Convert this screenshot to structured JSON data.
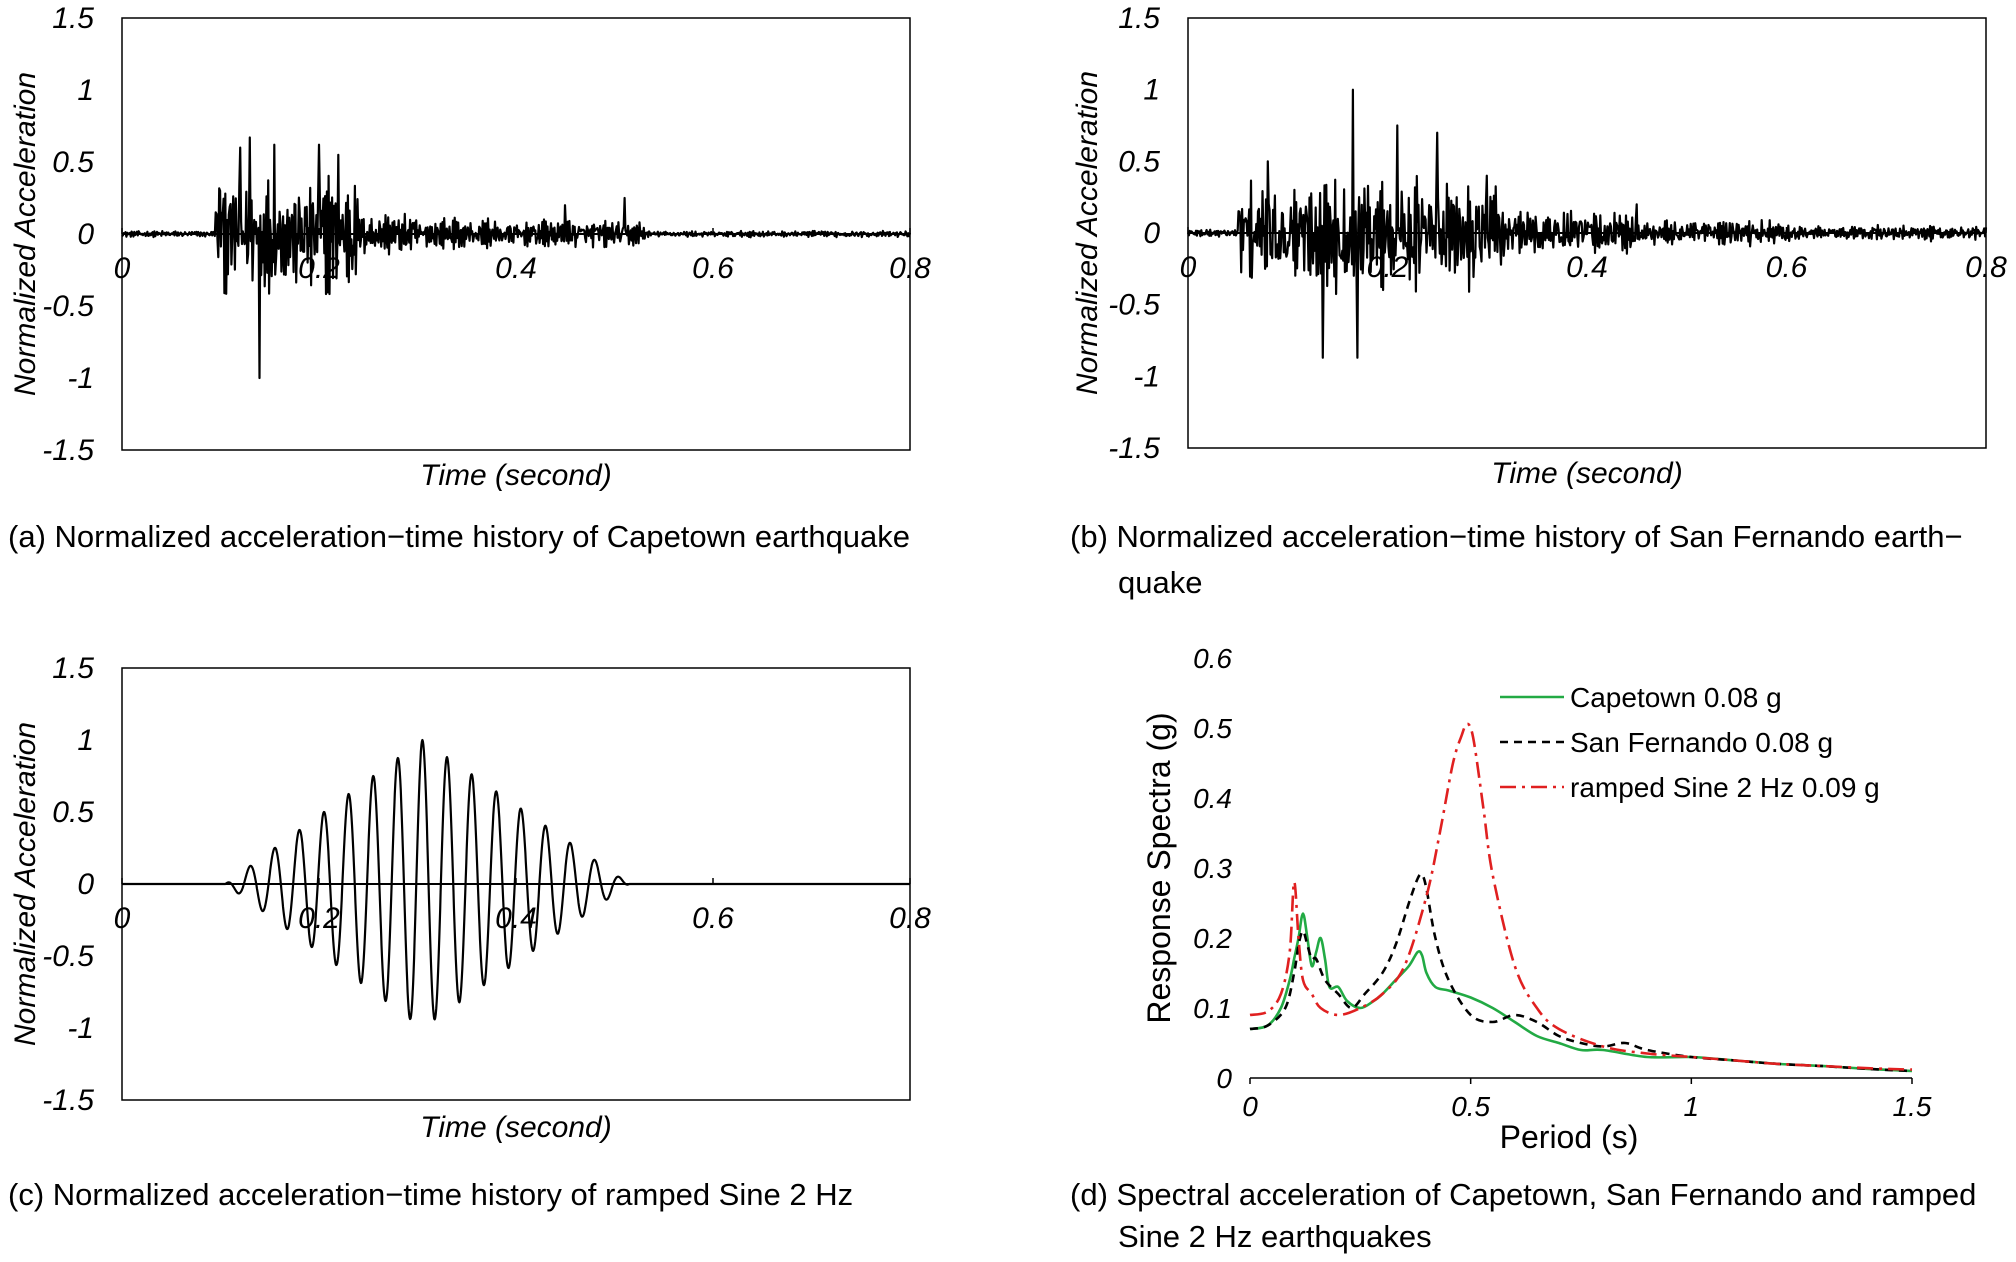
{
  "captions": {
    "a": "(a) Normalized acceleration−time history of Capetown earthquake",
    "b_line1": "(b) Normalized acceleration−time history of San Fernando earth−",
    "b_line2": "quake",
    "c": "(c) Normalized acceleration−time history of ramped Sine 2 Hz",
    "d_line1": "(d) Spectral acceleration of Capetown, San Fernando and ramped",
    "d_line2": "Sine 2 Hz earthquakes"
  },
  "chart_data": [
    {
      "id": "a",
      "type": "line",
      "xlabel": "Time (second)",
      "ylabel": "Normalized Acceleration",
      "xlim": [
        0,
        0.8
      ],
      "ylim": [
        -1.5,
        1.5
      ],
      "xticks": [
        "0",
        "0.2",
        "0.4",
        "0.6",
        "0.8"
      ],
      "yticks": [
        "1.5",
        "1",
        "0.5",
        "0",
        "-0.5",
        "-1",
        "-1.5"
      ],
      "signal": "Capetown earthquake",
      "line_color": "#000000",
      "peaks": {
        "x": [
          0.1,
          0.12,
          0.13,
          0.14,
          0.155,
          0.2,
          0.22,
          0.45,
          0.51
        ],
        "y": [
          0.3,
          0.6,
          0.67,
          -1.0,
          0.62,
          0.62,
          0.55,
          0.2,
          0.25
        ]
      }
    },
    {
      "id": "b",
      "type": "line",
      "xlabel": "Time (second)",
      "ylabel": "Normalized Acceleration",
      "xlim": [
        0,
        0.8
      ],
      "ylim": [
        -1.5,
        1.5
      ],
      "xticks": [
        "0",
        "0.2",
        "0.4",
        "0.6",
        "0.8"
      ],
      "yticks": [
        "1.5",
        "1",
        "0.5",
        "0",
        "-0.5",
        "-1",
        "-1.5"
      ],
      "signal": "San Fernando earthquake",
      "line_color": "#000000",
      "peaks": {
        "x": [
          0.08,
          0.135,
          0.165,
          0.17,
          0.21,
          0.25,
          0.3,
          0.45
        ],
        "y": [
          0.5,
          -0.87,
          1.0,
          -0.87,
          0.75,
          0.7,
          0.4,
          0.2
        ]
      }
    },
    {
      "id": "c",
      "type": "line",
      "xlabel": "Time (second)",
      "ylabel": "Normalized Acceleration",
      "xlim": [
        0,
        0.8
      ],
      "ylim": [
        -1.5,
        1.5
      ],
      "xticks": [
        "0",
        "0.2",
        "0.4",
        "0.6",
        "0.8"
      ],
      "yticks": [
        "1.5",
        "1",
        "0.5",
        "0",
        "-0.5",
        "-1",
        "-1.5"
      ],
      "signal": "ramped Sine 2 Hz",
      "line_color": "#000000",
      "start": 0.105,
      "end": 0.515,
      "peak_time": 0.305,
      "frequency_in_plot_time_units": 40,
      "amplitude": 1.0
    },
    {
      "id": "d",
      "type": "line",
      "xlabel": "Period (s)",
      "ylabel": "Response Spectra (g)",
      "xlim": [
        0,
        1.5
      ],
      "ylim": [
        0,
        0.6
      ],
      "xticks": [
        "0",
        "0.5",
        "1",
        "1.5"
      ],
      "yticks": [
        "0.6",
        "0.5",
        "0.4",
        "0.3",
        "0.2",
        "0.1",
        "0"
      ],
      "legend_position": "top-right",
      "series": [
        {
          "name": "Capetown 0.08 g",
          "color": "#22aa44",
          "style": "solid",
          "x": [
            0,
            0.04,
            0.07,
            0.09,
            0.1,
            0.11,
            0.12,
            0.13,
            0.14,
            0.15,
            0.16,
            0.17,
            0.18,
            0.2,
            0.22,
            0.25,
            0.28,
            0.3,
            0.33,
            0.36,
            0.38,
            0.39,
            0.4,
            0.42,
            0.45,
            0.5,
            0.55,
            0.6,
            0.65,
            0.7,
            0.75,
            0.8,
            0.9,
            1.0,
            1.1,
            1.2,
            1.3,
            1.4,
            1.5
          ],
          "y": [
            0.07,
            0.075,
            0.1,
            0.14,
            0.17,
            0.2,
            0.235,
            0.2,
            0.16,
            0.18,
            0.2,
            0.17,
            0.13,
            0.13,
            0.11,
            0.1,
            0.11,
            0.12,
            0.14,
            0.16,
            0.18,
            0.175,
            0.15,
            0.13,
            0.125,
            0.115,
            0.1,
            0.08,
            0.06,
            0.05,
            0.04,
            0.04,
            0.03,
            0.03,
            0.025,
            0.02,
            0.017,
            0.013,
            0.01
          ]
        },
        {
          "name": "San Fernando 0.08 g",
          "color": "#000000",
          "style": "dashed",
          "x": [
            0,
            0.04,
            0.08,
            0.1,
            0.11,
            0.12,
            0.13,
            0.14,
            0.15,
            0.17,
            0.2,
            0.23,
            0.26,
            0.3,
            0.33,
            0.36,
            0.38,
            0.39,
            0.4,
            0.42,
            0.45,
            0.5,
            0.55,
            0.6,
            0.65,
            0.7,
            0.75,
            0.8,
            0.85,
            0.9,
            1.0,
            1.1,
            1.2,
            1.3,
            1.4,
            1.5
          ],
          "y": [
            0.07,
            0.075,
            0.1,
            0.15,
            0.19,
            0.21,
            0.19,
            0.17,
            0.17,
            0.14,
            0.12,
            0.1,
            0.12,
            0.15,
            0.19,
            0.25,
            0.285,
            0.29,
            0.27,
            0.2,
            0.14,
            0.09,
            0.08,
            0.09,
            0.08,
            0.06,
            0.05,
            0.045,
            0.05,
            0.04,
            0.03,
            0.025,
            0.02,
            0.017,
            0.013,
            0.01
          ]
        },
        {
          "name": "ramped Sine 2 Hz 0.09 g",
          "color": "#e02020",
          "style": "dashdot",
          "x": [
            0,
            0.04,
            0.07,
            0.09,
            0.1,
            0.11,
            0.12,
            0.14,
            0.16,
            0.2,
            0.25,
            0.3,
            0.35,
            0.4,
            0.43,
            0.46,
            0.48,
            0.49,
            0.5,
            0.51,
            0.53,
            0.55,
            0.6,
            0.65,
            0.7,
            0.8,
            0.9,
            1.0,
            1.1,
            1.2,
            1.3,
            1.4,
            1.5
          ],
          "y": [
            0.09,
            0.095,
            0.12,
            0.18,
            0.28,
            0.2,
            0.14,
            0.12,
            0.1,
            0.09,
            0.1,
            0.12,
            0.16,
            0.26,
            0.35,
            0.45,
            0.49,
            0.505,
            0.5,
            0.47,
            0.38,
            0.29,
            0.16,
            0.1,
            0.07,
            0.045,
            0.035,
            0.03,
            0.025,
            0.02,
            0.017,
            0.014,
            0.012
          ]
        }
      ]
    }
  ]
}
